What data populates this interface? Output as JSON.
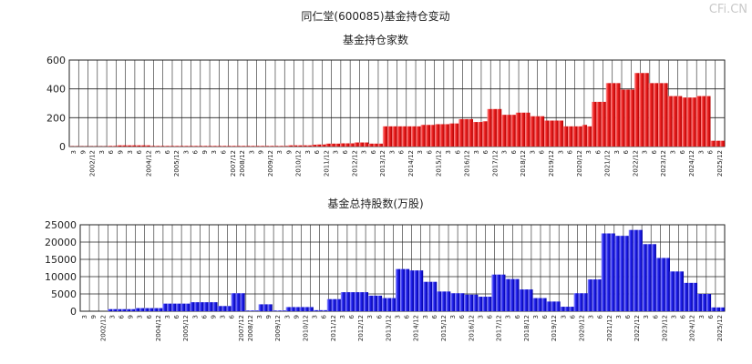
{
  "watermark": "CFi.CN",
  "main_title": "同仁堂(600085)基金持仓变动",
  "colors": {
    "red": "#ee2222",
    "blue": "#2222ee",
    "grid": "#222222"
  },
  "chart_data": [
    {
      "type": "bar",
      "title": "基金持仓家数",
      "ylim": [
        0,
        600
      ],
      "yticks": [
        0,
        200,
        400,
        600
      ],
      "grid": true,
      "series": [
        {
          "values": [
            2,
            2,
            2,
            2,
            2,
            2,
            2,
            2,
            4,
            4,
            8,
            8,
            8,
            8,
            8,
            8,
            8,
            4,
            4,
            4,
            4,
            4,
            4,
            4,
            4,
            4,
            4,
            4,
            4,
            4,
            4,
            4,
            4,
            4,
            4,
            4,
            4,
            4,
            4,
            4,
            4,
            4,
            4,
            4,
            4,
            4,
            8,
            8,
            8,
            8,
            8,
            12,
            14,
            14,
            20,
            20,
            20,
            22,
            22,
            22,
            28,
            28,
            28,
            20,
            20,
            20,
            140,
            140,
            140,
            140,
            140,
            140,
            140,
            140,
            150,
            150,
            150,
            155,
            155,
            155,
            160,
            160,
            190,
            190,
            190,
            170,
            170,
            175,
            260,
            260,
            260,
            220,
            220,
            220,
            235,
            235,
            235,
            210,
            210,
            210,
            180,
            180,
            180,
            180,
            140,
            140,
            140,
            140,
            150,
            140,
            310,
            310,
            310,
            440,
            440,
            440,
            395,
            395,
            395,
            510,
            510,
            510,
            440,
            440,
            440,
            440,
            350,
            350,
            350,
            340,
            340,
            340,
            350,
            350,
            350,
            40,
            40,
            40
          ]
        }
      ]
    },
    {
      "type": "bar",
      "title": "基金总持股数(万股)",
      "ylim": [
        0,
        25000
      ],
      "yticks": [
        0,
        5000,
        10000,
        15000,
        20000,
        25000
      ],
      "grid": true,
      "series": [
        {
          "values": [
            0,
            0,
            0,
            0,
            0,
            0,
            600,
            600,
            600,
            600,
            600,
            600,
            900,
            900,
            900,
            900,
            900,
            900,
            2200,
            2200,
            2200,
            2200,
            2200,
            2200,
            2600,
            2600,
            2600,
            2600,
            2600,
            2600,
            1500,
            1500,
            1500,
            5200,
            5200,
            5200,
            200,
            200,
            200,
            2000,
            2000,
            2000,
            200,
            200,
            200,
            1200,
            1200,
            1200,
            1200,
            1200,
            1200,
            300,
            300,
            300,
            3500,
            3500,
            3500,
            5500,
            5500,
            5500,
            5500,
            5500,
            5500,
            4500,
            4500,
            4500,
            3800,
            3800,
            3800,
            12200,
            12200,
            12200,
            11800,
            11800,
            11800,
            8500,
            8500,
            8500,
            5700,
            5700,
            5700,
            5200,
            5200,
            5200,
            4800,
            4800,
            4800,
            4200,
            4200,
            4200,
            10600,
            10600,
            10600,
            9300,
            9300,
            9300,
            6300,
            6300,
            6300,
            3800,
            3800,
            3800,
            2800,
            2800,
            2800,
            1300,
            1300,
            1300,
            5200,
            5200,
            5200,
            9200,
            9200,
            9200,
            22500,
            22500,
            22500,
            21800,
            21800,
            21800,
            23500,
            23500,
            23500,
            19400,
            19400,
            19400,
            15400,
            15400,
            15400,
            11500,
            11500,
            11500,
            8200,
            8200,
            8200,
            5000,
            5000,
            5000,
            1100,
            1100,
            1100
          ]
        }
      ]
    }
  ],
  "x_axis": {
    "months": [
      "3",
      "9",
      "2002/12",
      "3",
      "6",
      "9",
      "3",
      "6",
      "2004/12",
      "3",
      "6",
      "2005/12",
      "3",
      "6",
      "9",
      "3",
      "6",
      "2007/12",
      "2008/12",
      "3",
      "9",
      "2009/12",
      "3",
      "9",
      "2010/12",
      "3",
      "6",
      "2011/12",
      "3",
      "6",
      "2012/12",
      "3",
      "6",
      "2013/12",
      "3",
      "6",
      "2014/12",
      "3",
      "6",
      "2015/12",
      "3",
      "6",
      "2016/12",
      "3",
      "6",
      "2017/12",
      "3",
      "6",
      "2018/12",
      "3",
      "6",
      "2019/12",
      "3",
      "6",
      "2020/12",
      "3",
      "6",
      "2021/12",
      "3",
      "6",
      "2022/12",
      "3",
      "6",
      "2023/12",
      "3",
      "6",
      "2024/12",
      "3",
      "6",
      "2025/12"
    ]
  }
}
